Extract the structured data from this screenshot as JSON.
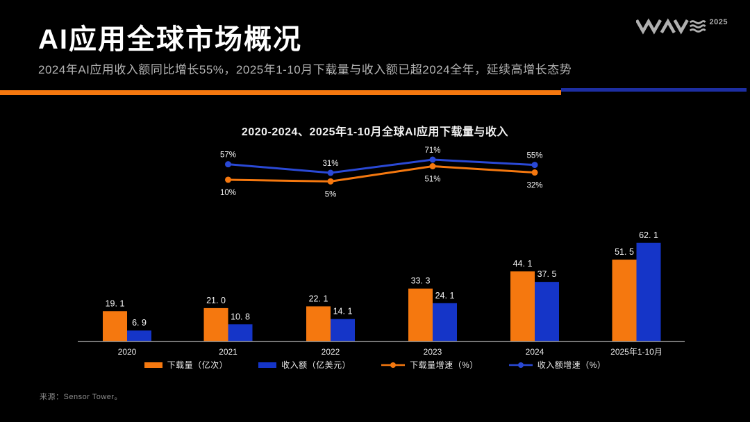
{
  "slide": {
    "title": "AI应用全球市场概况",
    "subtitle": "2024年AI应用收入额同比增长55%，2025年1-10月下载量与收入额已超2024全年，延续高增长态势",
    "source": "来源：Sensor Tower。",
    "logo": {
      "name": "WAVE",
      "year": "2025"
    }
  },
  "colors": {
    "background": "#000000",
    "orange": "#f5780f",
    "blue_bar": "#1535c8",
    "blue_line": "#2a49d6",
    "divider_orange": "#f5780f",
    "divider_blue": "#1d2ea2",
    "axis_gray": "#9c9c9c",
    "label_white": "#f5f5f5",
    "category_gray": "#e8e8e8",
    "source_gray": "#8c8c8c",
    "logo_gray": "#b0b0b0"
  },
  "chart_data": {
    "type": "bar",
    "subtype": "grouped bars with growth-rate lines (combo chart)",
    "title": "2020-2024、2025年1-10月全球AI应用下载量与收入",
    "categories": [
      "2020",
      "2021",
      "2022",
      "2023",
      "2024",
      "2025年1-10月"
    ],
    "bar_series": [
      {
        "name": "下载量（亿次）",
        "color": "#f5780f",
        "values": [
          19.1,
          21.0,
          22.1,
          33.3,
          44.1,
          51.5
        ],
        "labels": [
          "19. 1",
          "21. 0",
          "22. 1",
          "33. 3",
          "44. 1",
          "51. 5"
        ]
      },
      {
        "name": "收入额（亿美元）",
        "color": "#1535c8",
        "values": [
          6.9,
          10.8,
          14.1,
          24.1,
          37.5,
          62.1
        ],
        "labels": [
          "6. 9",
          "10. 8",
          "14. 1",
          "24. 1",
          "37. 5",
          "62. 1"
        ]
      }
    ],
    "line_series": [
      {
        "name": "下载量增速（%）",
        "color": "#f5780f",
        "categories": [
          "2021",
          "2022",
          "2023",
          "2024"
        ],
        "values": [
          10,
          5,
          51,
          32
        ],
        "labels": [
          "10%",
          "5%",
          "51%",
          "32%"
        ],
        "label_position": "below"
      },
      {
        "name": "收入额增速（%）",
        "color": "#2a49d6",
        "categories": [
          "2021",
          "2022",
          "2023",
          "2024"
        ],
        "values": [
          57,
          31,
          71,
          55
        ],
        "labels": [
          "57%",
          "31%",
          "71%",
          "55%"
        ],
        "label_position": "above"
      }
    ],
    "legend": [
      "下载量（亿次）",
      "收入额（亿美元）",
      "下载量增速（%）",
      "收入额增速（%）"
    ],
    "legend_position": "bottom",
    "value_axis_visible": false,
    "grid": false
  }
}
